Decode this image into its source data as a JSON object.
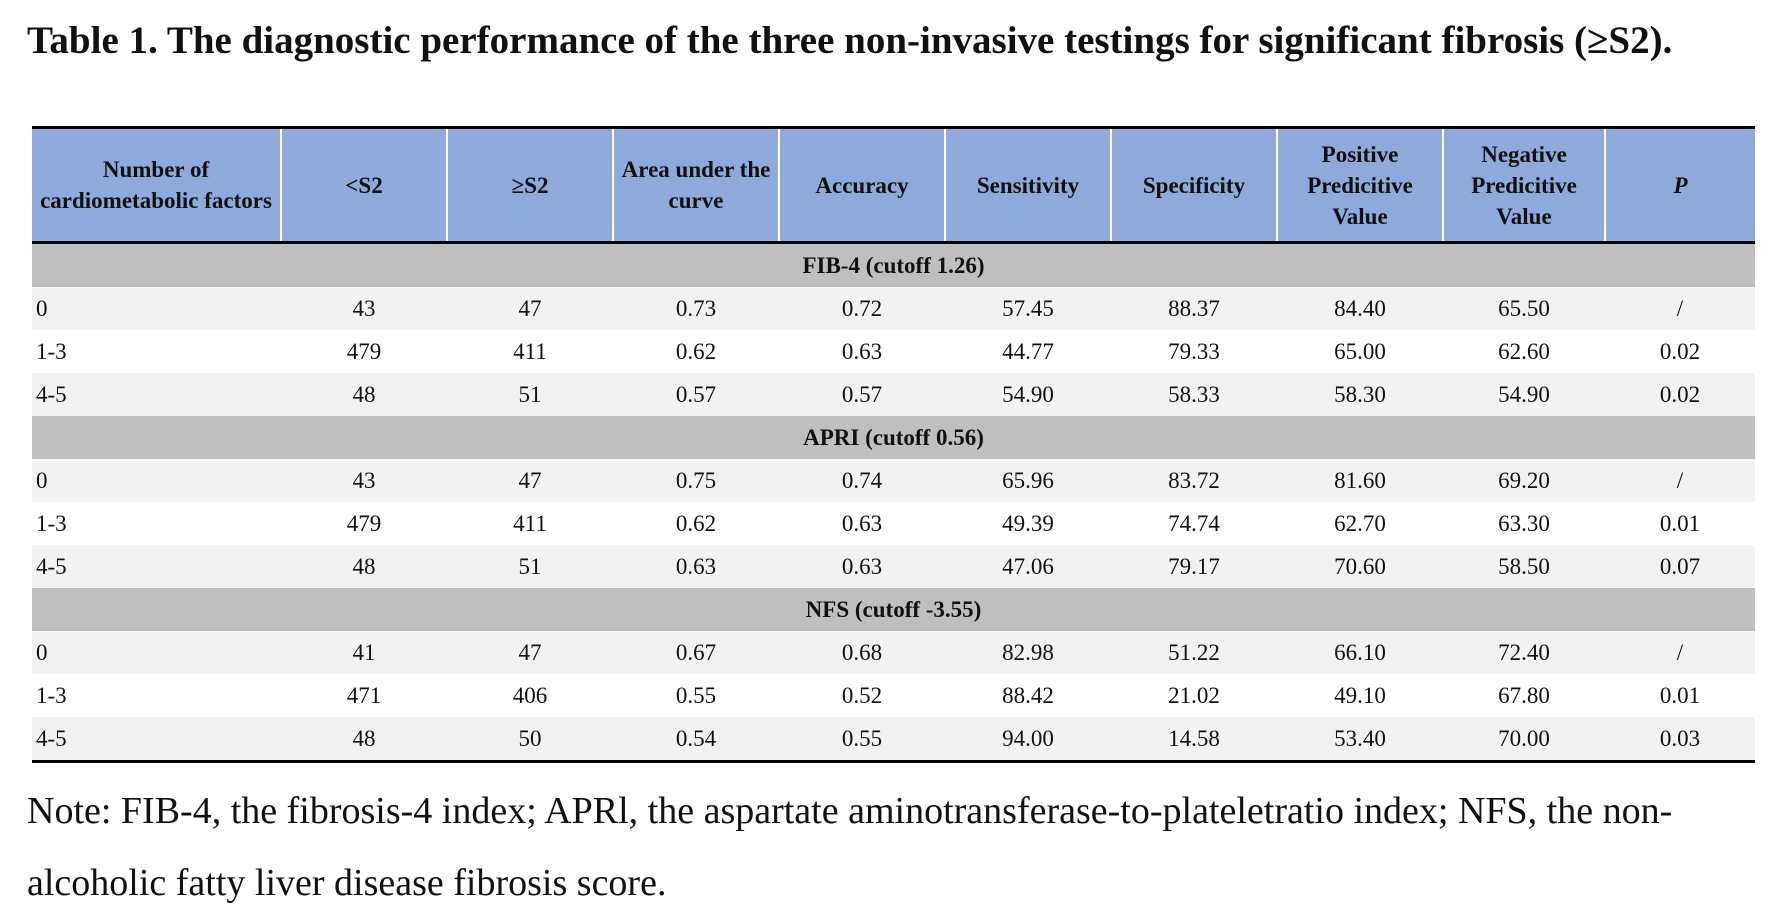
{
  "title": "Table 1. The diagnostic performance of the three non-invasive testings for significant fibrosis (≥S2).",
  "columns": [
    "Number of cardiometabolic factors",
    "<S2",
    "≥S2",
    "Area under the curve",
    "Accuracy",
    "Sensitivity",
    "Specificity",
    "Positive Predicitive Value",
    "Negative Predicitive Value",
    "P"
  ],
  "sections": [
    {
      "label": "FIB-4 (cutoff 1.26)",
      "rows": [
        [
          "0",
          "43",
          "47",
          "0.73",
          "0.72",
          "57.45",
          "88.37",
          "84.40",
          "65.50",
          "/"
        ],
        [
          "1-3",
          "479",
          "411",
          "0.62",
          "0.63",
          "44.77",
          "79.33",
          "65.00",
          "62.60",
          "0.02"
        ],
        [
          "4-5",
          "48",
          "51",
          "0.57",
          "0.57",
          "54.90",
          "58.33",
          "58.30",
          "54.90",
          "0.02"
        ]
      ]
    },
    {
      "label": "APRI (cutoff 0.56)",
      "rows": [
        [
          "0",
          "43",
          "47",
          "0.75",
          "0.74",
          "65.96",
          "83.72",
          "81.60",
          "69.20",
          "/"
        ],
        [
          "1-3",
          "479",
          "411",
          "0.62",
          "0.63",
          "49.39",
          "74.74",
          "62.70",
          "63.30",
          "0.01"
        ],
        [
          "4-5",
          "48",
          "51",
          "0.63",
          "0.63",
          "47.06",
          "79.17",
          "70.60",
          "58.50",
          "0.07"
        ]
      ]
    },
    {
      "label": "NFS (cutoff -3.55)",
      "rows": [
        [
          "0",
          "41",
          "47",
          "0.67",
          "0.68",
          "82.98",
          "51.22",
          "66.10",
          "72.40",
          "/"
        ],
        [
          "1-3",
          "471",
          "406",
          "0.55",
          "0.52",
          "88.42",
          "21.02",
          "49.10",
          "67.80",
          "0.01"
        ],
        [
          "4-5",
          "48",
          "50",
          "0.54",
          "0.55",
          "94.00",
          "14.58",
          "53.40",
          "70.00",
          "0.03"
        ]
      ]
    }
  ],
  "note": "Note: FIB-4, the fibrosis-4 index; APRl, the aspartate aminotransferase-to-plateletratio index; NFS, the non-alcoholic fatty liver disease fibrosis score.",
  "colors": {
    "header_bg": "#8eaadb",
    "section_bg": "#bfbfbf",
    "stripe_bg": "#f2f2f2"
  }
}
